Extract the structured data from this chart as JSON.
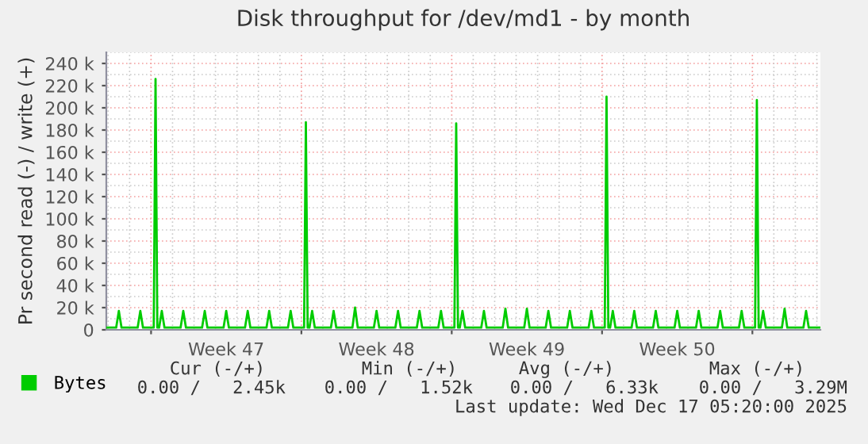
{
  "chart_data": {
    "type": "line",
    "title": "Disk throughput for /dev/md1 - by month",
    "ylabel": "Pr second read (-) / write (+)",
    "series": [
      {
        "name": "Bytes",
        "color": "#00cc00",
        "x": [
          "2025-11-14T22:00",
          "2025-11-15T09:00",
          "2025-11-15T12:00",
          "2025-11-15T15:00",
          "2025-11-16T09:00",
          "2025-11-16T12:00",
          "2025-11-16T15:00",
          "2025-11-17T03:00",
          "2025-11-17T05:00",
          "2025-11-17T07:00",
          "2025-11-17T09:00",
          "2025-11-17T12:00",
          "2025-11-17T15:00",
          "2025-11-18T09:00",
          "2025-11-18T12:00",
          "2025-11-18T15:00",
          "2025-11-19T09:00",
          "2025-11-19T12:00",
          "2025-11-19T15:00",
          "2025-11-20T09:00",
          "2025-11-20T12:00",
          "2025-11-20T15:00",
          "2025-11-21T09:00",
          "2025-11-21T12:00",
          "2025-11-21T15:00",
          "2025-11-22T09:00",
          "2025-11-22T12:00",
          "2025-11-22T15:00",
          "2025-11-23T09:00",
          "2025-11-23T12:00",
          "2025-11-23T15:00",
          "2025-11-24T03:00",
          "2025-11-24T05:00",
          "2025-11-24T07:00",
          "2025-11-24T09:00",
          "2025-11-24T12:00",
          "2025-11-24T15:00",
          "2025-11-25T09:00",
          "2025-11-25T12:00",
          "2025-11-25T15:00",
          "2025-11-26T09:00",
          "2025-11-26T12:00",
          "2025-11-26T15:00",
          "2025-11-27T09:00",
          "2025-11-27T12:00",
          "2025-11-27T15:00",
          "2025-11-28T09:00",
          "2025-11-28T12:00",
          "2025-11-28T15:00",
          "2025-11-29T09:00",
          "2025-11-29T12:00",
          "2025-11-29T15:00",
          "2025-11-30T09:00",
          "2025-11-30T12:00",
          "2025-11-30T15:00",
          "2025-12-01T03:00",
          "2025-12-01T05:00",
          "2025-12-01T07:00",
          "2025-12-01T09:00",
          "2025-12-01T12:00",
          "2025-12-01T15:00",
          "2025-12-02T09:00",
          "2025-12-02T12:00",
          "2025-12-02T15:00",
          "2025-12-03T09:00",
          "2025-12-03T12:00",
          "2025-12-03T15:00",
          "2025-12-04T09:00",
          "2025-12-04T12:00",
          "2025-12-04T15:00",
          "2025-12-05T09:00",
          "2025-12-05T12:00",
          "2025-12-05T15:00",
          "2025-12-06T09:00",
          "2025-12-06T12:00",
          "2025-12-06T15:00",
          "2025-12-07T09:00",
          "2025-12-07T12:00",
          "2025-12-07T15:00",
          "2025-12-08T03:00",
          "2025-12-08T05:00",
          "2025-12-08T07:00",
          "2025-12-08T09:00",
          "2025-12-08T12:00",
          "2025-12-08T15:00",
          "2025-12-09T09:00",
          "2025-12-09T12:00",
          "2025-12-09T15:00",
          "2025-12-10T09:00",
          "2025-12-10T12:00",
          "2025-12-10T15:00",
          "2025-12-11T09:00",
          "2025-12-11T12:00",
          "2025-12-11T15:00",
          "2025-12-12T09:00",
          "2025-12-12T12:00",
          "2025-12-12T15:00",
          "2025-12-13T09:00",
          "2025-12-13T12:00",
          "2025-12-13T15:00",
          "2025-12-14T09:00",
          "2025-12-14T12:00",
          "2025-12-14T15:00",
          "2025-12-15T03:00",
          "2025-12-15T05:00",
          "2025-12-15T07:00",
          "2025-12-15T09:00",
          "2025-12-15T12:00",
          "2025-12-15T15:00",
          "2025-12-16T09:00",
          "2025-12-16T12:00",
          "2025-12-16T15:00",
          "2025-12-17T09:00",
          "2025-12-17T12:00",
          "2025-12-17T15:00",
          "2025-12-18T04:00"
        ],
        "values": [
          2000,
          2000,
          17000,
          2000,
          2000,
          17000,
          2000,
          2000,
          226000,
          2000,
          2000,
          17000,
          2000,
          2000,
          17000,
          2000,
          2000,
          17000,
          2000,
          2000,
          17000,
          2000,
          2000,
          17000,
          2000,
          2000,
          17000,
          2000,
          2000,
          17000,
          2000,
          2000,
          187000,
          2000,
          2000,
          17000,
          2000,
          2000,
          17000,
          2000,
          2000,
          20000,
          2000,
          2000,
          17000,
          2000,
          2000,
          17000,
          2000,
          2000,
          17000,
          2000,
          2000,
          17000,
          2000,
          2000,
          186000,
          2000,
          2000,
          17000,
          2000,
          2000,
          17000,
          2000,
          2000,
          19000,
          2000,
          2000,
          19000,
          2000,
          2000,
          17000,
          2000,
          2000,
          17000,
          2000,
          2000,
          17000,
          2000,
          2000,
          210000,
          2000,
          2000,
          17000,
          2000,
          2000,
          17000,
          2000,
          2000,
          17000,
          2000,
          2000,
          17000,
          2000,
          2000,
          17000,
          2000,
          2000,
          17000,
          2000,
          2000,
          17000,
          2000,
          2000,
          207000,
          2000,
          2000,
          17000,
          2000,
          2000,
          19000,
          2000,
          2000,
          17000,
          2000,
          2000
        ]
      }
    ],
    "xlim": [
      "2025-11-14T22:00",
      "2025-12-18T04:00"
    ],
    "xticks": [
      {
        "value": "2025-11-17",
        "label": null
      },
      {
        "value": "2025-11-20T12:00",
        "label": "Week 47"
      },
      {
        "value": "2025-11-24",
        "label": null
      },
      {
        "value": "2025-11-27T12:00",
        "label": "Week 48"
      },
      {
        "value": "2025-12-01",
        "label": null
      },
      {
        "value": "2025-12-04T12:00",
        "label": "Week 49"
      },
      {
        "value": "2025-12-08",
        "label": null
      },
      {
        "value": "2025-12-11T12:00",
        "label": "Week 50"
      },
      {
        "value": "2025-12-15",
        "label": null
      }
    ],
    "ylim": [
      0,
      250000
    ],
    "yticks": [
      0,
      {
        "value": 20000,
        "label": "20 k"
      },
      {
        "value": 40000,
        "label": "40 k"
      },
      {
        "value": 60000,
        "label": "60 k"
      },
      {
        "value": 80000,
        "label": "80 k"
      },
      {
        "value": 100000,
        "label": "100 k"
      },
      {
        "value": 120000,
        "label": "120 k"
      },
      {
        "value": 140000,
        "label": "140 k"
      },
      {
        "value": 160000,
        "label": "160 k"
      },
      {
        "value": 180000,
        "label": "180 k"
      },
      {
        "value": 200000,
        "label": "200 k"
      },
      {
        "value": 220000,
        "label": "220 k"
      },
      {
        "value": 240000,
        "label": "240 k"
      }
    ],
    "grid": true,
    "legend": "bottom left",
    "marker": "none",
    "line_style": "solid",
    "annotations": [
      "Cur (-/+)",
      "Min (-/+)",
      "Avg (-/+)",
      "Max (-/+)",
      "0.00 /   2.45k",
      "0.00 /   1.52k",
      "0.00 /   6.33k",
      "0.00 /   3.29M",
      "Last update: Wed Dec 17 05:20:00 2025"
    ]
  }
}
